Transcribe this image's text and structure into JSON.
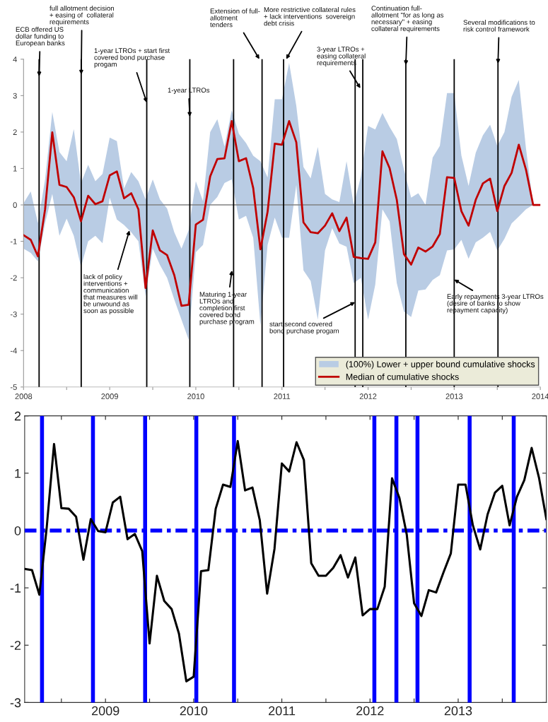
{
  "chart_data": [
    {
      "type": "line",
      "x": [
        "2008-01",
        "2008-02",
        "2008-03",
        "2008-04",
        "2008-05",
        "2008-06",
        "2008-07",
        "2008-08",
        "2008-09",
        "2008-10",
        "2008-11",
        "2008-12",
        "2009-01",
        "2009-02",
        "2009-03",
        "2009-04",
        "2009-05",
        "2009-06",
        "2009-07",
        "2009-08",
        "2009-09",
        "2009-10",
        "2009-11",
        "2009-12",
        "2010-01",
        "2010-02",
        "2010-03",
        "2010-04",
        "2010-05",
        "2010-06",
        "2010-07",
        "2010-08",
        "2010-09",
        "2010-10",
        "2010-11",
        "2010-12",
        "2011-01",
        "2011-02",
        "2011-03",
        "2011-04",
        "2011-05",
        "2011-06",
        "2011-07",
        "2011-08",
        "2011-09",
        "2011-10",
        "2011-11",
        "2011-12",
        "2012-01",
        "2012-02",
        "2012-03",
        "2012-04",
        "2012-05",
        "2012-06",
        "2012-07",
        "2012-08",
        "2012-09",
        "2012-10",
        "2012-11",
        "2012-12",
        "2013-01",
        "2013-02",
        "2013-03",
        "2013-04",
        "2013-05",
        "2013-06",
        "2013-07",
        "2013-08",
        "2013-09",
        "2013-10",
        "2013-11",
        "2013-12",
        "2014-01"
      ],
      "series": [
        {
          "name": "Median of cumulative shocks",
          "color": "#c00000",
          "upper": [
            0.05,
            0.37,
            -0.5,
            0.7,
            2.55,
            1.45,
            1.2,
            2.08,
            0.6,
            1.1,
            0.65,
            0.85,
            1.85,
            1.75,
            0.45,
            0.9,
            0.65,
            0.15,
            0.7,
            0.15,
            -0.1,
            -0.75,
            -1.2,
            -0.7,
            0.65,
            0.1,
            2.0,
            2.35,
            1.6,
            2.6,
            1.95,
            1.7,
            1.35,
            1.2,
            0.75,
            2.9,
            2.9,
            3.9,
            2.72,
            1.04,
            0.73,
            1.59,
            0.3,
            0.15,
            0.08,
            1.2,
            0.0,
            0.78,
            2.17,
            2.07,
            2.52,
            2.14,
            1.81,
            0.97,
            0.2,
            0.32,
            0.0,
            1.3,
            1.62,
            3.07,
            3.07,
            1.36,
            0.52,
            1.43,
            1.91,
            2.2,
            1.62,
            2.0,
            2.97,
            3.43,
            1.55,
            0,
            0
          ],
          "lower": [
            -1.2,
            -1.32,
            -1.55,
            -0.5,
            0.3,
            -0.85,
            -0.38,
            -0.85,
            -1.7,
            -1.0,
            -0.85,
            -1.05,
            0.2,
            -0.4,
            -0.55,
            -0.75,
            -1.0,
            -2.5,
            -1.2,
            -1.65,
            -2.0,
            -2.6,
            -3.15,
            -3.7,
            -1.3,
            -1.1,
            0.0,
            0.22,
            0.6,
            0.7,
            -0.4,
            -0.3,
            -0.9,
            -3.3,
            -1.1,
            -0.35,
            -0.9,
            -0.9,
            0.55,
            -1.8,
            -2.09,
            -3.15,
            -1.25,
            -0.64,
            -1.06,
            -1.15,
            -2.15,
            -2.0,
            -3.15,
            -2.19,
            -0.12,
            -0.45,
            -2.15,
            -2.93,
            -3.08,
            -2.35,
            -2.32,
            -2.06,
            -1.93,
            -1.25,
            -1.22,
            -0.96,
            -1.48,
            -1.03,
            -0.9,
            -0.74,
            -1.25,
            -0.93,
            -0.51,
            -0.32,
            -0.12,
            0,
            0
          ],
          "values": [
            -0.83,
            -0.96,
            -1.41,
            -0.12,
            1.99,
            0.55,
            0.49,
            0.21,
            -0.45,
            0.25,
            0.02,
            0.1,
            0.81,
            0.92,
            0.18,
            0.32,
            -0.12,
            -2.28,
            -0.7,
            -1.25,
            -1.38,
            -1.93,
            -2.77,
            -2.74,
            -0.54,
            -0.41,
            0.78,
            1.26,
            1.28,
            2.3,
            1.2,
            1.28,
            0.46,
            -1.22,
            -0.19,
            1.68,
            1.65,
            2.3,
            1.72,
            -0.48,
            -0.75,
            -0.78,
            -0.57,
            -0.23,
            -0.72,
            -0.35,
            -1.43,
            -1.46,
            -1.48,
            -1.03,
            1.47,
            1.01,
            0.14,
            -1.35,
            -1.64,
            -1.17,
            -1.28,
            -1.14,
            -0.8,
            0.76,
            0.74,
            -0.17,
            -0.57,
            0.14,
            0.59,
            0.72,
            -0.17,
            0.52,
            0.88,
            1.65,
            0.97,
            0.0,
            0.0
          ]
        }
      ],
      "xlim": [
        "2008-01",
        "2014-01"
      ],
      "xticks": [
        {
          "value": "2008-01",
          "label": "2008"
        },
        {
          "value": "2008-07",
          "label": null
        },
        {
          "value": "2009-01",
          "label": "2009"
        },
        {
          "value": "2009-07",
          "label": null
        },
        {
          "value": "2010-01",
          "label": "2010"
        },
        {
          "value": "2010-07",
          "label": null
        },
        {
          "value": "2011-01",
          "label": "2011"
        },
        {
          "value": "2011-07",
          "label": null
        },
        {
          "value": "2012-01",
          "label": "2012"
        },
        {
          "value": "2012-07",
          "label": null
        },
        {
          "value": "2013-01",
          "label": "2013"
        },
        {
          "value": "2013-07",
          "label": null
        },
        {
          "value": "2014-01",
          "label": "2014"
        }
      ],
      "ylim": [
        -5,
        4
      ],
      "yticks": [
        -5,
        -4,
        -3,
        -2,
        -1,
        0,
        1,
        2,
        3,
        4
      ],
      "ref_lines": [
        {
          "axis": "y",
          "value": 0,
          "color": "#808080",
          "line_style": "solid"
        },
        {
          "axis": "x",
          "value": "2008-03-06",
          "color": "#000000",
          "line_style": "solid"
        },
        {
          "axis": "x",
          "value": "2008-09-02",
          "color": "#000000",
          "line_style": "solid"
        },
        {
          "axis": "x",
          "value": "2009-06-06",
          "color": "#000000",
          "line_style": "solid"
        },
        {
          "axis": "x",
          "value": "2009-12-06",
          "color": "#000000",
          "line_style": "solid"
        },
        {
          "axis": "x",
          "value": "2010-06-09",
          "color": "#000000",
          "line_style": "solid"
        },
        {
          "axis": "x",
          "value": "2010-10-08",
          "color": "#000000",
          "line_style": "solid"
        },
        {
          "axis": "x",
          "value": "2011-01-08",
          "color": "#000000",
          "line_style": "solid"
        },
        {
          "axis": "x",
          "value": "2011-11-07",
          "color": "#000000",
          "line_style": "solid"
        },
        {
          "axis": "x",
          "value": "2011-12-09",
          "color": "#000000",
          "line_style": "solid"
        },
        {
          "axis": "x",
          "value": "2012-06-09",
          "color": "#000000",
          "line_style": "solid"
        },
        {
          "axis": "x",
          "value": "2013-01-01",
          "color": "#000000",
          "line_style": "solid"
        },
        {
          "axis": "x",
          "value": "2013-07-04",
          "color": "#000000",
          "line_style": "solid"
        }
      ],
      "annotations": [
        {
          "text": "ECB offered US\ndollar funding to\nEuropean banks",
          "x": "2008-03-06",
          "y": 3.53
        },
        {
          "text": "full allotment decision\n+ easing of  collateral\nrequirements",
          "x": "2008-09-02",
          "y": 3.58
        },
        {
          "text": "1-year LTROs + start first\ncovered bond purchase\nprogam",
          "x": "2009-06-06",
          "y": 2.81
        },
        {
          "text": "1-year LTROs",
          "x": "2009-12-06",
          "y": 2.42
        },
        {
          "text": "Extension of full-\nallotment\ntenders",
          "x": "2010-09-27",
          "y": 4
        },
        {
          "text": "More restrictive collateral rules\n+ lack interventions  sovereign\ndebt crisis",
          "x": "2011-01-19",
          "y": 4
        },
        {
          "text": "3-year LTROs +\neasing collateral\nrequirements",
          "x": "2011-11-29",
          "y": 3.2
        },
        {
          "text": "Continuation full-\nallotment \"for as long as\nnecessary\" + easing\ncollateral requirements",
          "x": "2012-06-09",
          "y": 3.84
        },
        {
          "text": "Several modifications to\nrisk control framework",
          "x": "2013-07-04",
          "y": 3.88
        },
        {
          "text": "lack of policy\ninterventions +\ncommunication\nthat measures will\nbe unwound as\nsoon as possible",
          "x": "2009-03-24",
          "y": -0.7
        },
        {
          "text": "Maturing 1-year\nLTROs and\ncompletion first\ncovered bond\npurchase program",
          "x": "2010-06-02",
          "y": -1.8
        },
        {
          "text": "start second covered\nbond purchase progam",
          "x": "2011-11-07",
          "y": -2.67
        },
        {
          "text": "Early repayments 3-year LTROs\n(desire of banks to show\nrepayment capacity)",
          "x": "2013-01-01",
          "y": -2.05
        },
        "(100%) Lower + upper bound cumulative shocks"
      ],
      "legend": "bottom right"
    },
    {
      "type": "line",
      "x": [
        "2008-02",
        "2008-03",
        "2008-04",
        "2008-05",
        "2008-06",
        "2008-07",
        "2008-08",
        "2008-09",
        "2008-10",
        "2008-11",
        "2008-12",
        "2009-01",
        "2009-02",
        "2009-03",
        "2009-04",
        "2009-05",
        "2009-06",
        "2009-07",
        "2009-08",
        "2009-09",
        "2009-10",
        "2009-11",
        "2009-12",
        "2010-01",
        "2010-02",
        "2010-03",
        "2010-04",
        "2010-05",
        "2010-06",
        "2010-07",
        "2010-08",
        "2010-09",
        "2010-10",
        "2010-11",
        "2010-12",
        "2011-01",
        "2011-02",
        "2011-03",
        "2011-04",
        "2011-05",
        "2011-06",
        "2011-07",
        "2011-08",
        "2011-09",
        "2011-10",
        "2011-11",
        "2011-12",
        "2012-01",
        "2012-02",
        "2012-03",
        "2012-04",
        "2012-05",
        "2012-06",
        "2012-07",
        "2012-08",
        "2012-09",
        "2012-10",
        "2012-11",
        "2012-12",
        "2013-01",
        "2013-02",
        "2013-03",
        "2013-04",
        "2013-05",
        "2013-06",
        "2013-07",
        "2013-08",
        "2013-09",
        "2013-10",
        "2013-11",
        "2013-12",
        "2014-01"
      ],
      "series": [
        {
          "color": "#000000",
          "values": [
            -0.67,
            -0.69,
            -1.12,
            0.05,
            1.51,
            0.39,
            0.38,
            0.24,
            -0.51,
            0.2,
            -0.01,
            -0.03,
            0.49,
            0.59,
            -0.15,
            -0.06,
            -0.36,
            -1.97,
            -0.79,
            -1.23,
            -1.37,
            -1.8,
            -2.63,
            -2.55,
            -0.71,
            -0.69,
            0.38,
            0.8,
            0.76,
            1.56,
            0.7,
            0.75,
            0.18,
            -1.1,
            -0.32,
            1.17,
            1.03,
            1.54,
            1.23,
            -0.57,
            -0.79,
            -0.79,
            -0.65,
            -0.43,
            -0.82,
            -0.47,
            -1.48,
            -1.37,
            -1.37,
            -0.98,
            0.91,
            0.57,
            -0.07,
            -1.27,
            -1.49,
            -1.04,
            -1.08,
            -0.73,
            -0.4,
            0.8,
            0.8,
            0.09,
            -0.33,
            0.28,
            0.66,
            0.78,
            0.09,
            0.59,
            0.88,
            1.44,
            0.92,
            0.2
          ]
        }
      ],
      "xlim": [
        "2008-02",
        "2014-01"
      ],
      "xticks": [
        {
          "value": "2008-07",
          "label": null
        },
        {
          "value": "2009-01",
          "label": "2009"
        },
        {
          "value": "2009-07",
          "label": null
        },
        {
          "value": "2010-01",
          "label": "2010"
        },
        {
          "value": "2010-07",
          "label": null
        },
        {
          "value": "2011-01",
          "label": "2011"
        },
        {
          "value": "2011-07",
          "label": null
        },
        {
          "value": "2012-01",
          "label": "2012"
        },
        {
          "value": "2012-07",
          "label": null
        },
        {
          "value": "2013-01",
          "label": "2013"
        },
        {
          "value": "2013-07",
          "label": null
        }
      ],
      "ylim": [
        -3,
        2
      ],
      "yticks": [
        -3,
        -2,
        -1,
        0,
        1,
        2
      ],
      "ref_lines": [
        {
          "axis": "y",
          "value": 0,
          "color": "#0000ff",
          "line_style": "dashed"
        },
        {
          "axis": "x",
          "value": "2008-04-12",
          "color": "#0000ff",
          "line_style": "solid"
        },
        {
          "axis": "x",
          "value": "2008-11-10",
          "color": "#0000ff",
          "line_style": "solid"
        },
        {
          "axis": "x",
          "value": "2009-06-13",
          "color": "#0000ff",
          "line_style": "solid"
        },
        {
          "axis": "x",
          "value": "2010-01-12",
          "color": "#0000ff",
          "line_style": "solid"
        },
        {
          "axis": "x",
          "value": "2010-06-16",
          "color": "#0000ff",
          "line_style": "solid"
        },
        {
          "axis": "x",
          "value": "2012-01-19",
          "color": "#0000ff",
          "line_style": "solid"
        },
        {
          "axis": "x",
          "value": "2012-04-19",
          "color": "#0000ff",
          "line_style": "solid"
        },
        {
          "axis": "x",
          "value": "2012-07-15",
          "color": "#0000ff",
          "line_style": "solid"
        },
        {
          "axis": "x",
          "value": "2013-02-18",
          "color": "#0000ff",
          "line_style": "solid"
        },
        {
          "axis": "x",
          "value": "2013-08-18",
          "color": "#0000ff",
          "line_style": "solid"
        }
      ]
    }
  ]
}
